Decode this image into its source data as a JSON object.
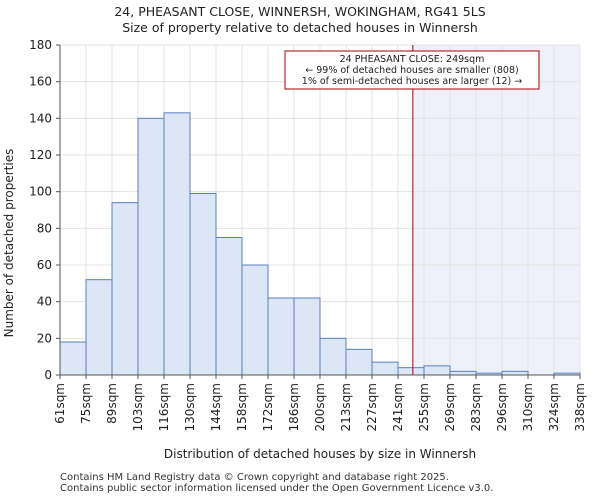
{
  "chart_data": {
    "type": "bar",
    "title": "24, PHEASANT CLOSE, WINNERSH, WOKINGHAM, RG41 5LS",
    "subtitle": "Size of property relative to detached houses in Winnersh",
    "xlabel": "Distribution of detached houses by size in Winnersh",
    "ylabel": "Number of detached properties",
    "ylim": [
      0,
      180
    ],
    "yticks": [
      0,
      20,
      40,
      60,
      80,
      100,
      120,
      140,
      160,
      180
    ],
    "bin_edges": [
      61,
      75,
      89,
      103,
      116,
      130,
      144,
      158,
      172,
      186,
      200,
      213,
      227,
      241,
      255,
      269,
      283,
      296,
      310,
      324,
      338
    ],
    "tick_labels": [
      "61sqm",
      "75sqm",
      "89sqm",
      "103sqm",
      "116sqm",
      "130sqm",
      "144sqm",
      "158sqm",
      "172sqm",
      "186sqm",
      "200sqm",
      "213sqm",
      "227sqm",
      "241sqm",
      "255sqm",
      "269sqm",
      "283sqm",
      "296sqm",
      "310sqm",
      "324sqm",
      "338sqm"
    ],
    "values": [
      18,
      52,
      94,
      140,
      143,
      99,
      75,
      60,
      42,
      42,
      20,
      14,
      7,
      4,
      5,
      2,
      1,
      2,
      0,
      1
    ],
    "marker": {
      "value": 249,
      "label": "24 PHEASANT CLOSE: 249sqm",
      "line2": "← 99% of detached houses are smaller (808)",
      "line3": "1% of semi-detached houses are larger (12) →",
      "color": "#aa0000"
    },
    "bar_fill": "#dce6f4",
    "bar_stroke": "#5a7fc0",
    "shade_fill": "#eef1fa"
  },
  "footer": {
    "line1": "Contains HM Land Registry data © Crown copyright and database right 2025.",
    "line2": "Contains public sector information licensed under the Open Government Licence v3.0."
  }
}
